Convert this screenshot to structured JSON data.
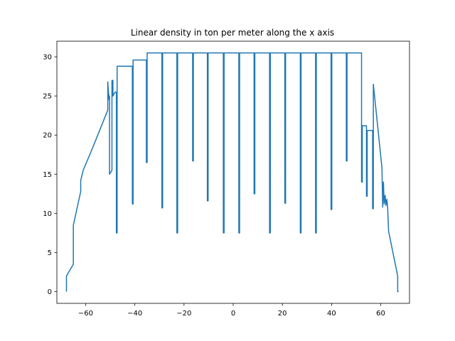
{
  "chart_data": {
    "type": "line",
    "title": "Linear density in ton per meter along the x axis",
    "xlabel": "",
    "ylabel": "",
    "xlim": [
      -71.7,
      71.7
    ],
    "ylim": [
      -1.5,
      32
    ],
    "x_ticks": [
      -60,
      -40,
      -20,
      0,
      20,
      40,
      60
    ],
    "x_tick_labels": [
      "−60",
      "−40",
      "−20",
      "0",
      "20",
      "40",
      "60"
    ],
    "y_ticks": [
      0,
      5,
      10,
      15,
      20,
      25,
      30
    ],
    "y_tick_labels": [
      "0",
      "5",
      "10",
      "15",
      "20",
      "25",
      "30"
    ],
    "grid": false,
    "legend": "none",
    "line_color": "#1f77b4",
    "frame_color": "#000000",
    "series": [
      {
        "points": [
          [
            -67.8,
            0.0
          ],
          [
            -67.8,
            2.0
          ],
          [
            -65.0,
            3.5
          ],
          [
            -65.0,
            8.5
          ],
          [
            -62.0,
            12.8
          ],
          [
            -62.0,
            14.2
          ],
          [
            -61.0,
            15.5
          ],
          [
            -57.0,
            18.5
          ],
          [
            -51.0,
            23.2
          ],
          [
            -51.0,
            26.8
          ],
          [
            -50.5,
            24.5
          ],
          [
            -50.5,
            25.0
          ],
          [
            -50.3,
            25.0
          ],
          [
            -50.3,
            15.0
          ],
          [
            -49.3,
            15.5
          ],
          [
            -49.3,
            27.0
          ],
          [
            -48.9,
            27.0
          ],
          [
            -48.9,
            25.0
          ],
          [
            -48.0,
            25.5
          ],
          [
            -47.5,
            25.5
          ],
          [
            -47.5,
            7.5
          ],
          [
            -47.2,
            7.5
          ],
          [
            -47.2,
            28.8
          ],
          [
            -41.0,
            28.8
          ],
          [
            -41.0,
            11.2
          ],
          [
            -40.7,
            11.2
          ],
          [
            -40.7,
            29.6
          ],
          [
            -35.3,
            29.6
          ],
          [
            -35.3,
            16.5
          ],
          [
            -35.0,
            16.5
          ],
          [
            -35.0,
            30.5
          ],
          [
            -29.0,
            30.5
          ],
          [
            -29.0,
            10.7
          ],
          [
            -28.7,
            10.7
          ],
          [
            -28.7,
            30.5
          ],
          [
            -22.9,
            30.5
          ],
          [
            -22.9,
            7.5
          ],
          [
            -22.6,
            7.5
          ],
          [
            -22.6,
            30.5
          ],
          [
            -16.5,
            30.5
          ],
          [
            -16.5,
            16.7
          ],
          [
            -16.2,
            16.7
          ],
          [
            -16.2,
            30.5
          ],
          [
            -10.5,
            30.5
          ],
          [
            -10.5,
            11.6
          ],
          [
            -10.2,
            11.6
          ],
          [
            -10.2,
            30.5
          ],
          [
            -4.0,
            30.5
          ],
          [
            -4.0,
            7.5
          ],
          [
            -3.7,
            7.5
          ],
          [
            -3.7,
            30.5
          ],
          [
            2.3,
            30.5
          ],
          [
            2.3,
            7.5
          ],
          [
            2.6,
            7.5
          ],
          [
            2.6,
            30.5
          ],
          [
            8.5,
            30.5
          ],
          [
            8.5,
            12.5
          ],
          [
            8.8,
            12.5
          ],
          [
            8.8,
            30.5
          ],
          [
            14.8,
            30.5
          ],
          [
            14.8,
            7.5
          ],
          [
            15.1,
            7.5
          ],
          [
            15.1,
            30.5
          ],
          [
            21.0,
            30.5
          ],
          [
            21.0,
            11.3
          ],
          [
            21.3,
            11.3
          ],
          [
            21.3,
            30.5
          ],
          [
            27.3,
            30.5
          ],
          [
            27.3,
            7.5
          ],
          [
            27.6,
            7.5
          ],
          [
            27.6,
            30.5
          ],
          [
            33.5,
            30.5
          ],
          [
            33.5,
            7.5
          ],
          [
            33.8,
            7.5
          ],
          [
            33.8,
            30.5
          ],
          [
            39.8,
            30.5
          ],
          [
            39.8,
            10.5
          ],
          [
            40.1,
            10.5
          ],
          [
            40.1,
            30.5
          ],
          [
            46.0,
            30.5
          ],
          [
            46.0,
            16.7
          ],
          [
            46.3,
            16.7
          ],
          [
            46.3,
            30.5
          ],
          [
            52.2,
            30.5
          ],
          [
            52.2,
            14.0
          ],
          [
            52.5,
            14.0
          ],
          [
            52.5,
            21.2
          ],
          [
            54.2,
            21.2
          ],
          [
            54.2,
            12.2
          ],
          [
            54.5,
            12.2
          ],
          [
            54.5,
            20.6
          ],
          [
            56.7,
            20.6
          ],
          [
            56.7,
            10.6
          ],
          [
            57.0,
            10.6
          ],
          [
            57.0,
            26.5
          ],
          [
            60.5,
            15.8
          ],
          [
            60.8,
            10.8
          ],
          [
            61.1,
            14.0
          ],
          [
            61.4,
            11.2
          ],
          [
            61.8,
            12.3
          ],
          [
            62.1,
            11.0
          ],
          [
            62.5,
            11.8
          ],
          [
            62.8,
            10.8
          ],
          [
            63.2,
            7.7
          ],
          [
            66.9,
            2.0
          ],
          [
            66.9,
            0.0
          ],
          [
            67.3,
            0.0
          ]
        ]
      }
    ]
  }
}
